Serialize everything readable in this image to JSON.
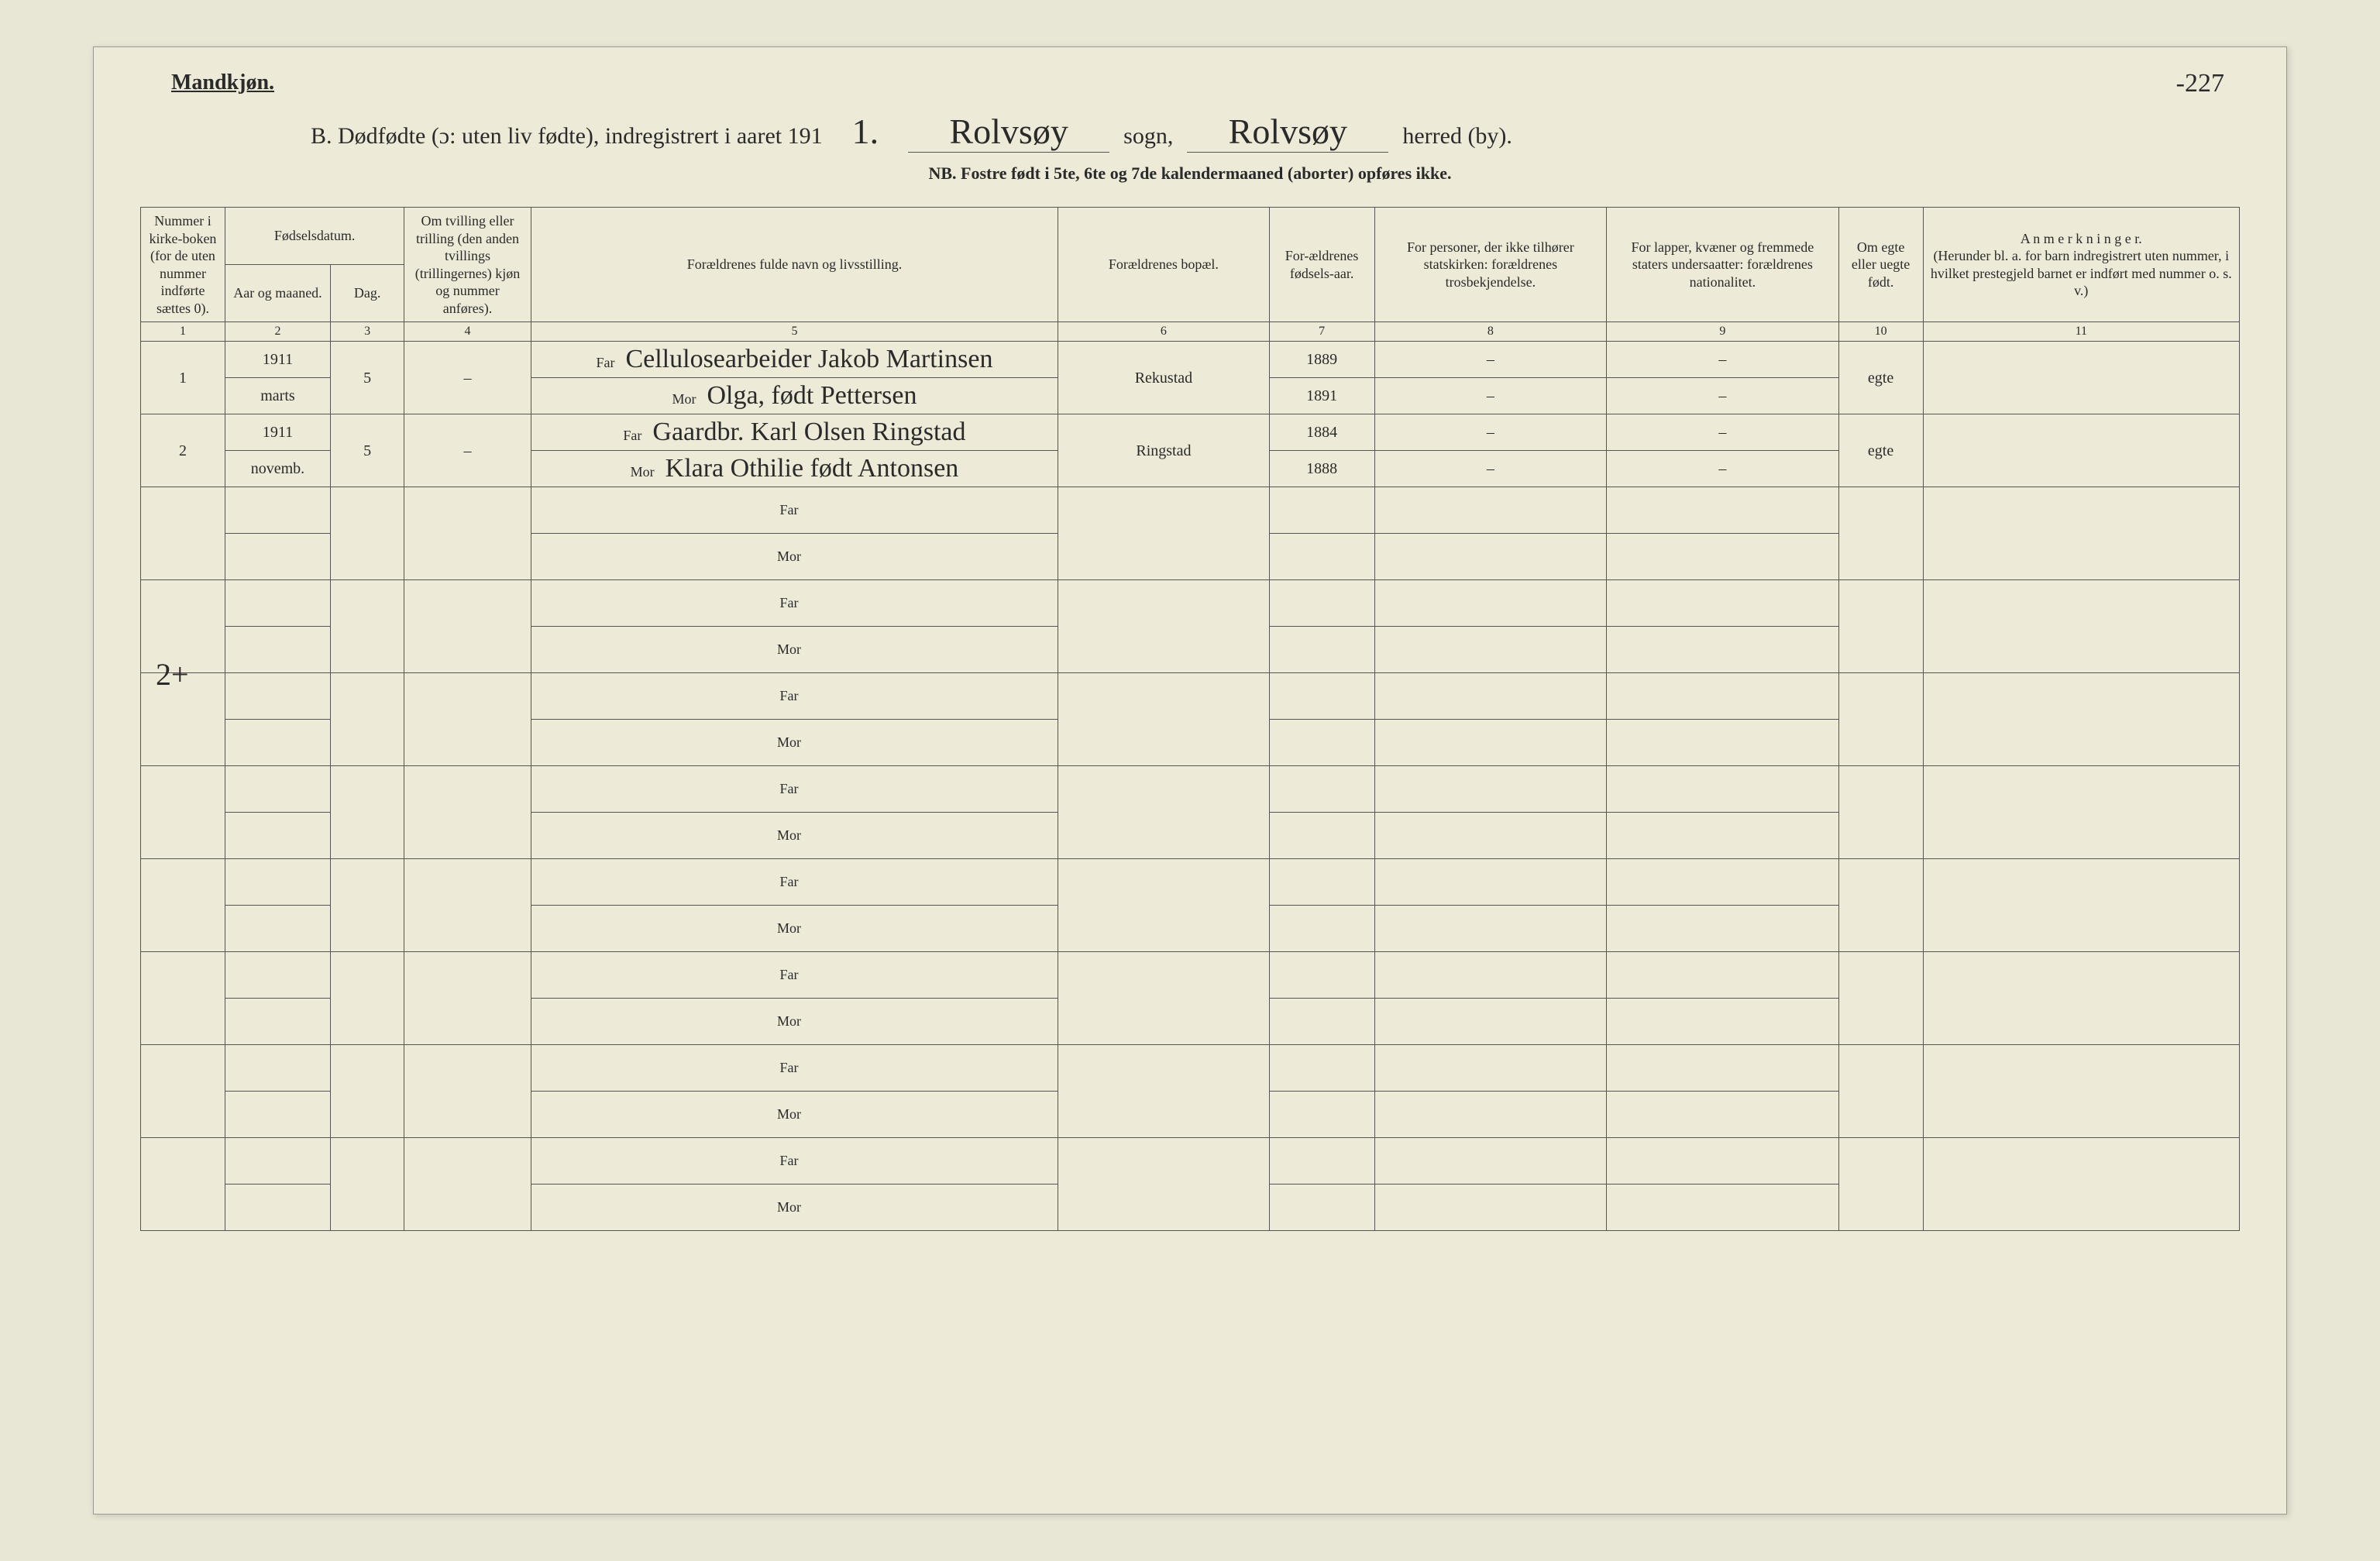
{
  "page": {
    "gender_label": "Mandkjøn.",
    "title_prefix": "B.  Dødfødte (ɔ: uten liv fødte), indregistrert i aaret 191",
    "year_suffix": "1.",
    "sogn_cursive": "Rolvsøy",
    "sogn_label": "sogn,",
    "herred_cursive": "Rolvsøy",
    "herred_label": "herred (by).",
    "page_number": "-227",
    "nb_line": "NB.  Fostre født i 5te, 6te og 7de kalendermaaned (aborter) opføres ikke."
  },
  "columns": {
    "col1": "Nummer i kirke-boken (for de uten nummer indførte sættes 0).",
    "col2_group": "Fødselsdatum.",
    "col2": "Aar og maaned.",
    "col3": "Dag.",
    "col4": "Om tvilling eller trilling (den anden tvillings (trillingernes) kjøn og nummer anføres).",
    "col5": "Forældrenes fulde navn og livsstilling.",
    "col6": "Forældrenes bopæl.",
    "col7": "For-ældrenes fødsels-aar.",
    "col8": "For personer, der ikke tilhører statskirken: forældrenes trosbekjendelse.",
    "col9": "For lapper, kvæner og fremmede staters undersaatter: forældrenes nationalitet.",
    "col10": "Om egte eller uegte født.",
    "col11": "A n m e r k n i n g e r.\n(Herunder bl. a. for barn indregistrert uten nummer, i hvilket prestegjeld barnet er indført med nummer o. s. v.)"
  },
  "colnums": [
    "1",
    "2",
    "3",
    "4",
    "5",
    "6",
    "7",
    "8",
    "9",
    "10",
    "11"
  ],
  "far_label": "Far",
  "mor_label": "Mor",
  "rows": [
    {
      "num": "1",
      "aar_maaned_top": "1911",
      "aar_maaned_bot": "marts",
      "dag": "5",
      "twin": "–",
      "far": "Cellulosearbeider Jakob Martinsen",
      "mor": "Olga, født Pettersen",
      "bopael": "Rekustad",
      "far_aar": "1889",
      "mor_aar": "1891",
      "far_tro": "–",
      "mor_tro": "–",
      "far_nat": "–",
      "mor_nat": "–",
      "egte": "egte",
      "anm": ""
    },
    {
      "num": "2",
      "aar_maaned_top": "1911",
      "aar_maaned_bot": "novemb.",
      "dag": "5",
      "twin": "–",
      "far": "Gaardbr. Karl Olsen Ringstad",
      "mor": "Klara Othilie født Antonsen",
      "bopael": "Ringstad",
      "far_aar": "1884",
      "mor_aar": "1888",
      "far_tro": "–",
      "mor_tro": "–",
      "far_nat": "–",
      "mor_nat": "–",
      "egte": "egte",
      "anm": ""
    }
  ],
  "margin_note": "2+",
  "empty_rows": 8,
  "colors": {
    "paper": "#edebd8",
    "background": "#e8e6d4",
    "ink": "#2a2a2a",
    "rule": "#555555"
  },
  "typography": {
    "body_family": "Georgia, Times New Roman, serif",
    "cursive_family": "Brush Script MT, cursive",
    "header_fontsize_pt": 18,
    "cell_fontsize_pt": 20,
    "title_fontsize_pt": 30,
    "cursive_fontsize_pt": 46
  },
  "structure_type": "table"
}
